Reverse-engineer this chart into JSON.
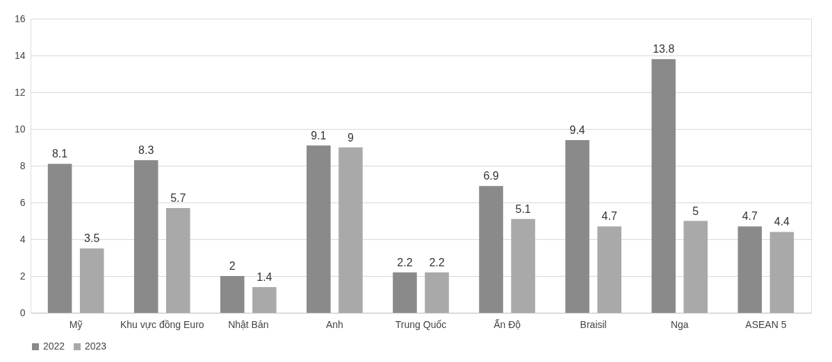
{
  "chart_data": {
    "type": "bar",
    "categories": [
      "Mỹ",
      "Khu vực đồng Euro",
      "Nhật Bản",
      "Anh",
      "Trung Quốc",
      "Ấn Độ",
      "Braisil",
      "Nga",
      "ASEAN 5"
    ],
    "series": [
      {
        "name": "2022",
        "color": "#8a8a8a",
        "values": [
          8.1,
          8.3,
          2,
          9.1,
          2.2,
          6.9,
          9.4,
          13.8,
          4.7
        ]
      },
      {
        "name": "2023",
        "color": "#a9a9a9",
        "values": [
          3.5,
          5.7,
          1.4,
          9,
          2.2,
          5.1,
          4.7,
          5,
          4.4
        ]
      }
    ],
    "ylim": [
      0,
      16
    ],
    "yticks": [
      0,
      2,
      4,
      6,
      8,
      10,
      12,
      14,
      16
    ],
    "grid": "y",
    "legend": "bottom",
    "data_labels": true
  }
}
